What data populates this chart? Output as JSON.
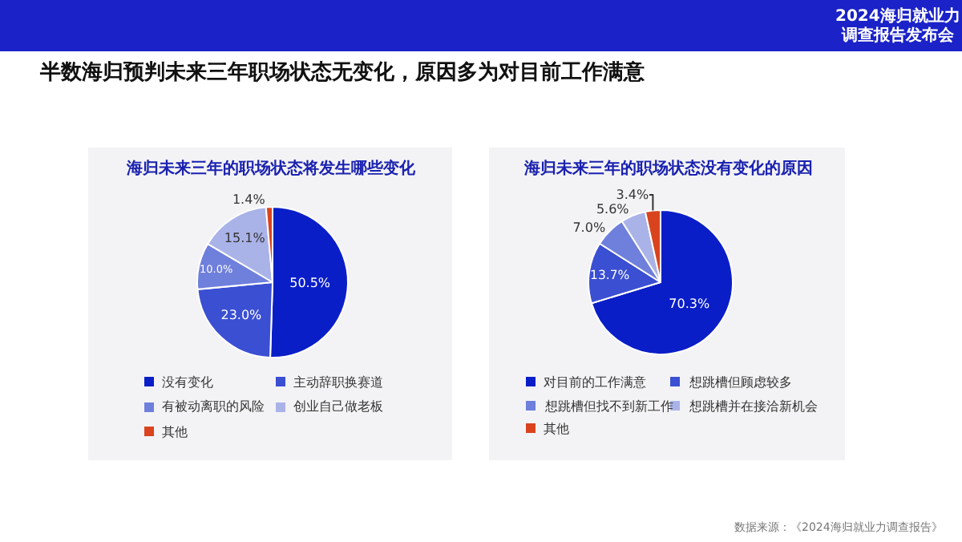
{
  "chart_data": [
    {
      "type": "other",
      "title": "半数海归预判未来三年职场状态无变化，原因多为对目前工作满意",
      "annotations": [
        "2024海归就业力",
        "调查报告发布会",
        "数据来源：《2024海归就业力调查报告》"
      ]
    },
    {
      "type": "pie",
      "title": "海归未来三年的职场状态将发生哪些变化",
      "categories": [
        "没有变化",
        "主动辞职换赛道",
        "有被动离职的风险",
        "创业自己做老板",
        "其他"
      ],
      "values": [
        50.5,
        23.0,
        10.0,
        15.1,
        1.4
      ],
      "value_labels": [
        "50.5%",
        "23.0%",
        "10.0%",
        "15.1%",
        "1.4%"
      ],
      "colors": [
        "#0a1ec8",
        "#3b4fd2",
        "#6f7fdc",
        "#aab3e8",
        "#d9441e"
      ],
      "legend": "bottom"
    },
    {
      "type": "pie",
      "title": "海归未来三年的职场状态没有变化的原因",
      "categories": [
        "对目前的工作满意",
        "想跳槽但顾虑较多",
        "想跳槽但找不到新工作",
        "想跳槽并在接洽新机会",
        "其他"
      ],
      "values": [
        70.3,
        13.7,
        7.0,
        5.6,
        3.4
      ],
      "value_labels": [
        "70.3%",
        "13.7%",
        "7.0%",
        "5.6%",
        "3.4%"
      ],
      "colors": [
        "#0a1ec8",
        "#3b4fd2",
        "#6f7fdc",
        "#aab3e8",
        "#d9441e"
      ],
      "legend": "bottom"
    }
  ]
}
